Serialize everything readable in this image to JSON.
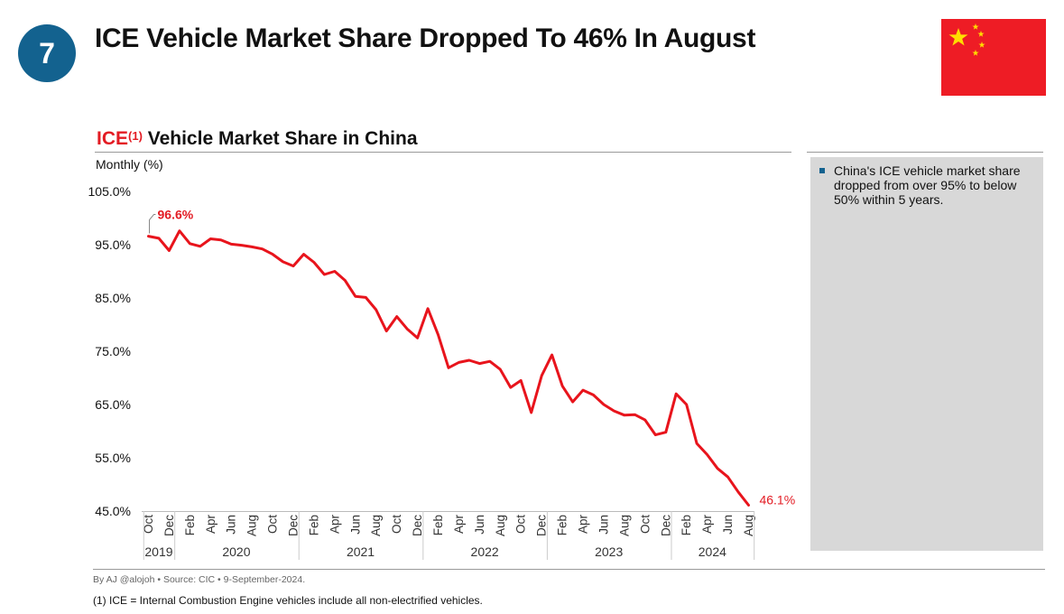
{
  "header": {
    "badge": "7",
    "title": "ICE Vehicle Market Share Dropped To 46% In August"
  },
  "flag": {
    "icon": "china-flag-icon",
    "colors": {
      "field": "#ee1c25",
      "stars": "#ffde00"
    }
  },
  "chart_header": {
    "title_red": "ICE",
    "title_sup": "(1)",
    "title_rest": " Vehicle Market Share in China",
    "units": "Monthly (%)"
  },
  "chart_data": {
    "type": "line",
    "series": [
      {
        "name": "",
        "color": "#e8141c",
        "values": [
          96.6,
          96.2,
          93.9,
          97.6,
          95.2,
          94.7,
          96.1,
          95.9,
          95.1,
          94.9,
          94.6,
          94.2,
          93.2,
          91.8,
          91.0,
          93.2,
          91.7,
          89.4,
          90.0,
          88.3,
          85.3,
          85.1,
          82.8,
          78.8,
          81.5,
          79.2,
          77.5,
          83.0,
          78.1,
          71.9,
          72.9,
          73.3,
          72.7,
          73.1,
          71.6,
          68.2,
          69.5,
          63.5,
          70.4,
          74.3,
          68.5,
          65.5,
          67.7,
          66.8,
          65.0,
          63.8,
          63.0,
          63.1,
          62.1,
          59.3,
          59.8,
          67.0,
          65.0,
          57.7,
          55.6,
          53.0,
          51.4,
          48.6,
          46.1
        ]
      }
    ],
    "first_label": "96.6%",
    "last_label": "46.1%",
    "ylim": [
      45,
      105
    ],
    "y_ticks": [
      "45.0%",
      "55.0%",
      "65.0%",
      "75.0%",
      "85.0%",
      "95.0%",
      "105.0%"
    ],
    "x_tick_labels": [
      "Oct",
      "Dec",
      "Feb",
      "Apr",
      "Jun",
      "Aug",
      "Oct",
      "Dec",
      "Feb",
      "Apr",
      "Jun",
      "Aug",
      "Oct",
      "Dec",
      "Feb",
      "Apr",
      "Jun",
      "Aug",
      "Oct",
      "Dec",
      "Feb",
      "Apr",
      "Jun",
      "Aug",
      "Oct",
      "Dec",
      "Feb",
      "Apr",
      "Jun",
      "Aug"
    ],
    "years": [
      "2019",
      "2020",
      "2021",
      "2022",
      "2023",
      "2024"
    ],
    "grid": false
  },
  "sidebar": {
    "note": "China's ICE vehicle market share dropped from over 95% to below 50% within 5 years."
  },
  "footer": {
    "byline": "By AJ @alojoh • Source: CIC • 9-September-2024.",
    "footnote": "(1) ICE = Internal Combustion Engine vehicles include all non-electrified vehicles."
  }
}
